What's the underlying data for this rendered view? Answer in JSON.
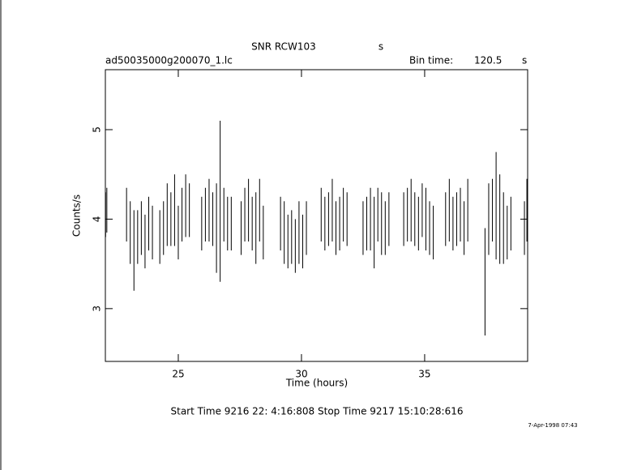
{
  "chart_data": {
    "type": "errorbar",
    "title": "SNR RCW103",
    "title_suffix": "s",
    "subtitle": "ad50035000g200070_1.lc",
    "bin_time_label": "Bin time:",
    "bin_time": "120.5",
    "bin_time_unit": "s",
    "x_label": "Time (hours)",
    "y_label": "Counts/s",
    "footer": "Start Time  9216 22: 4:16:808    Stop Time  9217 15:10:28:616",
    "date": "7-Apr-1998 07:43",
    "color": "#000000",
    "xlim": [
      22.04,
      39.18
    ],
    "ylim": [
      2.41,
      5.67
    ],
    "xticks": [
      25,
      30,
      35
    ],
    "yticks": [
      3,
      4,
      5
    ],
    "x": [
      22.05,
      22.1,
      22.9,
      23.05,
      23.2,
      23.35,
      23.5,
      23.65,
      23.8,
      23.95,
      24.25,
      24.4,
      24.55,
      24.7,
      24.85,
      25.0,
      25.15,
      25.3,
      25.45,
      25.95,
      26.1,
      26.25,
      26.4,
      26.55,
      26.7,
      26.85,
      27.0,
      27.15,
      27.55,
      27.7,
      27.85,
      28.0,
      28.15,
      28.3,
      28.45,
      29.15,
      29.3,
      29.45,
      29.6,
      29.75,
      29.9,
      30.05,
      30.2,
      30.8,
      30.95,
      31.1,
      31.25,
      31.4,
      31.55,
      31.7,
      31.85,
      32.5,
      32.65,
      32.8,
      32.95,
      33.1,
      33.25,
      33.4,
      33.55,
      34.15,
      34.3,
      34.45,
      34.6,
      34.75,
      34.9,
      35.05,
      35.2,
      35.35,
      35.85,
      36.0,
      36.15,
      36.3,
      36.45,
      36.6,
      36.75,
      37.45,
      37.6,
      37.75,
      37.9,
      38.05,
      38.2,
      38.35,
      38.5,
      39.05,
      39.15
    ],
    "values": [
      4.05,
      4.1,
      4.05,
      3.85,
      3.65,
      3.8,
      3.9,
      3.75,
      3.95,
      3.85,
      3.8,
      3.9,
      4.05,
      4.0,
      4.1,
      3.85,
      4.05,
      4.15,
      4.1,
      3.95,
      4.05,
      4.1,
      4.0,
      3.9,
      4.2,
      4.05,
      3.95,
      3.95,
      3.9,
      4.05,
      4.1,
      3.95,
      3.9,
      4.1,
      3.85,
      3.95,
      3.85,
      3.75,
      3.8,
      3.7,
      3.85,
      3.75,
      3.9,
      4.05,
      3.95,
      4.0,
      4.1,
      3.9,
      3.95,
      4.05,
      4.0,
      3.9,
      3.95,
      4.0,
      3.85,
      4.05,
      3.95,
      3.9,
      4.0,
      4.0,
      4.05,
      4.1,
      4.0,
      3.95,
      4.1,
      4.0,
      3.9,
      3.85,
      4.0,
      4.1,
      3.95,
      4.0,
      4.05,
      3.9,
      4.1,
      3.3,
      4.0,
      4.1,
      4.15,
      4.0,
      3.9,
      3.85,
      3.95,
      3.9,
      4.1
    ],
    "errors": [
      0.25,
      0.25,
      0.3,
      0.35,
      0.45,
      0.3,
      0.3,
      0.3,
      0.3,
      0.3,
      0.3,
      0.3,
      0.35,
      0.3,
      0.4,
      0.3,
      0.3,
      0.35,
      0.3,
      0.3,
      0.3,
      0.35,
      0.3,
      0.5,
      0.9,
      0.3,
      0.3,
      0.3,
      0.3,
      0.3,
      0.35,
      0.3,
      0.4,
      0.35,
      0.3,
      0.3,
      0.35,
      0.3,
      0.3,
      0.3,
      0.35,
      0.3,
      0.3,
      0.3,
      0.3,
      0.3,
      0.35,
      0.3,
      0.3,
      0.3,
      0.3,
      0.3,
      0.3,
      0.35,
      0.4,
      0.3,
      0.35,
      0.3,
      0.3,
      0.3,
      0.3,
      0.35,
      0.3,
      0.3,
      0.3,
      0.35,
      0.3,
      0.3,
      0.3,
      0.35,
      0.3,
      0.3,
      0.3,
      0.3,
      0.35,
      0.6,
      0.4,
      0.35,
      0.6,
      0.5,
      0.4,
      0.3,
      0.3,
      0.3,
      0.35
    ]
  }
}
